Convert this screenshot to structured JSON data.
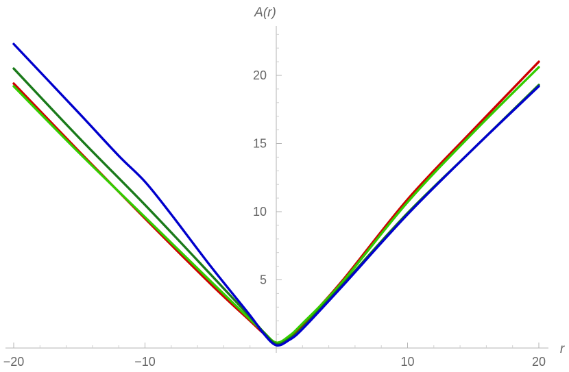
{
  "chart_data": {
    "type": "line",
    "title": "",
    "xlabel": "r",
    "ylabel": "A(r)",
    "xlim": [
      -20,
      20
    ],
    "ylim": [
      0,
      23
    ],
    "x_ticks": [
      -20,
      -10,
      10,
      20
    ],
    "x_tick_labels": [
      "−20",
      "−10",
      "10",
      "20"
    ],
    "y_ticks": [
      5,
      10,
      15,
      20
    ],
    "y_tick_labels": [
      "5",
      "10",
      "15",
      "20"
    ],
    "grid": false,
    "series": [
      {
        "color": "#cc0000",
        "points": [
          [
            -20,
            19.4
          ],
          [
            -15,
            14.4
          ],
          [
            -10,
            9.5
          ],
          [
            -5,
            4.7
          ],
          [
            -2,
            2.0
          ],
          [
            -1,
            1.1
          ],
          [
            0,
            0.4
          ],
          [
            1,
            0.8
          ],
          [
            2,
            1.7
          ],
          [
            5,
            4.9
          ],
          [
            10,
            10.9
          ],
          [
            15,
            16.0
          ],
          [
            20,
            21.0
          ]
        ]
      },
      {
        "color": "#33cc00",
        "points": [
          [
            -20,
            19.2
          ],
          [
            -15,
            14.3
          ],
          [
            -10,
            9.6
          ],
          [
            -5,
            4.9
          ],
          [
            -2,
            2.1
          ],
          [
            -1,
            1.2
          ],
          [
            0,
            0.4
          ],
          [
            1,
            0.9
          ],
          [
            2,
            1.8
          ],
          [
            5,
            4.8
          ],
          [
            10,
            10.7
          ],
          [
            15,
            15.8
          ],
          [
            20,
            20.6
          ]
        ]
      },
      {
        "color": "#1a7a1a",
        "points": [
          [
            -20,
            20.5
          ],
          [
            -15,
            15.4
          ],
          [
            -10,
            10.5
          ],
          [
            -5,
            5.4
          ],
          [
            -2,
            2.3
          ],
          [
            -1,
            1.2
          ],
          [
            0,
            0.3
          ],
          [
            1,
            0.7
          ],
          [
            2,
            1.5
          ],
          [
            5,
            4.6
          ],
          [
            10,
            9.9
          ],
          [
            15,
            14.6
          ],
          [
            20,
            19.3
          ]
        ]
      },
      {
        "color": "#0000cc",
        "points": [
          [
            -20,
            22.3
          ],
          [
            -15,
            17.2
          ],
          [
            -12,
            14.1
          ],
          [
            -10,
            12.2
          ],
          [
            -8,
            9.8
          ],
          [
            -5,
            6.0
          ],
          [
            -2,
            2.4
          ],
          [
            -1,
            1.1
          ],
          [
            0,
            0.2
          ],
          [
            1,
            0.6
          ],
          [
            2,
            1.4
          ],
          [
            5,
            4.5
          ],
          [
            10,
            9.8
          ],
          [
            15,
            14.6
          ],
          [
            20,
            19.2
          ]
        ]
      }
    ]
  }
}
